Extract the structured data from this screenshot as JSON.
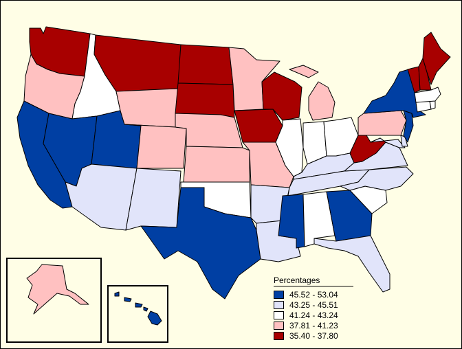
{
  "colors": {
    "c1": "#003fa3",
    "c2": "#e1e4fa",
    "c3": "#ffffff",
    "c4": "#ffc1c1",
    "c5": "#a80000",
    "background": "#fffee6"
  },
  "legend": {
    "title": "Percentages",
    "items": [
      {
        "label": "45.52 - 53.04",
        "color": "#003fa3"
      },
      {
        "label": "43.25 - 45.51",
        "color": "#e1e4fa"
      },
      {
        "label": "41.24 - 43.24",
        "color": "#ffffff"
      },
      {
        "label": "37.81 - 41.23",
        "color": "#ffc1c1"
      },
      {
        "label": "35.40 - 37.80",
        "color": "#a80000"
      }
    ]
  },
  "states": {
    "WA": "c5",
    "OR": "c4",
    "CA": "c1",
    "ID": "c3",
    "NV": "c1",
    "UT": "c1",
    "AZ": "c2",
    "MT": "c5",
    "WY": "c4",
    "CO": "c4",
    "NM": "c2",
    "ND": "c5",
    "SD": "c5",
    "NE": "c4",
    "KS": "c4",
    "OK": "c3",
    "TX": "c1",
    "MN": "c4",
    "IA": "c5",
    "MO": "c4",
    "AR": "c2",
    "LA": "c2",
    "WI": "c5",
    "IL": "c3",
    "MI": "c4",
    "IN": "c3",
    "OH": "c3",
    "KY": "c2",
    "TN": "c2",
    "MS": "c1",
    "AL": "c3",
    "GA": "c1",
    "FL": "c2",
    "SC": "c3",
    "NC": "c2",
    "VA": "c2",
    "WV": "c5",
    "PA": "c4",
    "NY": "c1",
    "NJ": "c1",
    "DE": "c2",
    "MD": "c2",
    "CT": "c3",
    "RI": "c3",
    "MA": "c3",
    "VT": "c5",
    "NH": "c5",
    "ME": "c5",
    "AK": "c4",
    "HI": "c1"
  }
}
